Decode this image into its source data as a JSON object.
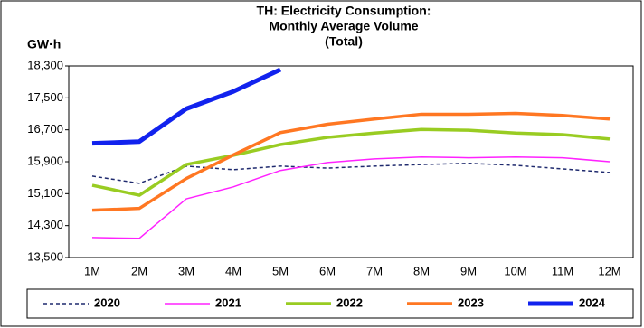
{
  "chart_data": {
    "type": "line",
    "title": [
      "TH: Electricity Consumption:",
      "Monthly Average Volume",
      "(Total)"
    ],
    "y_label": "GW·h",
    "categories": [
      "1M",
      "2M",
      "3M",
      "4M",
      "5M",
      "6M",
      "7M",
      "8M",
      "9M",
      "10M",
      "11M",
      "12M"
    ],
    "series": [
      {
        "name": "2020",
        "color": "#1f2a6e",
        "style": "dashed",
        "width": 1.5,
        "values": [
          15540,
          15360,
          15790,
          15700,
          15790,
          15740,
          15790,
          15830,
          15860,
          15810,
          15720,
          15630
        ]
      },
      {
        "name": "2021",
        "color": "#ff22ff",
        "style": "solid",
        "width": 1.5,
        "values": [
          14000,
          13980,
          14970,
          15270,
          15680,
          15880,
          15970,
          16020,
          16000,
          16020,
          16000,
          15900
        ]
      },
      {
        "name": "2022",
        "color": "#99cc22",
        "style": "solid",
        "width": 3.5,
        "values": [
          15310,
          15060,
          15830,
          16060,
          16330,
          16510,
          16620,
          16710,
          16690,
          16620,
          16580,
          16470
        ]
      },
      {
        "name": "2023",
        "color": "#ff7722",
        "style": "solid",
        "width": 3.5,
        "values": [
          14685,
          14730,
          15480,
          16070,
          16630,
          16840,
          16970,
          17090,
          17090,
          17110,
          17060,
          16970
        ]
      },
      {
        "name": "2024",
        "color": "#1122ee",
        "style": "solid",
        "width": 5,
        "values": [
          16360,
          16405,
          17228,
          17660,
          18210,
          null,
          null,
          null,
          null,
          null,
          null,
          null
        ]
      }
    ],
    "ylim": [
      13500,
      18300
    ],
    "yticks": [
      {
        "value": 13500,
        "label": "13,500"
      },
      {
        "value": 14300,
        "label": "14,300"
      },
      {
        "value": 15100,
        "label": "15,100"
      },
      {
        "value": 15900,
        "label": "15,900"
      },
      {
        "value": 16700,
        "label": "16,700"
      },
      {
        "value": 17500,
        "label": "17,500"
      },
      {
        "value": 18300,
        "label": "18,300"
      }
    ],
    "legend": "bottom"
  }
}
